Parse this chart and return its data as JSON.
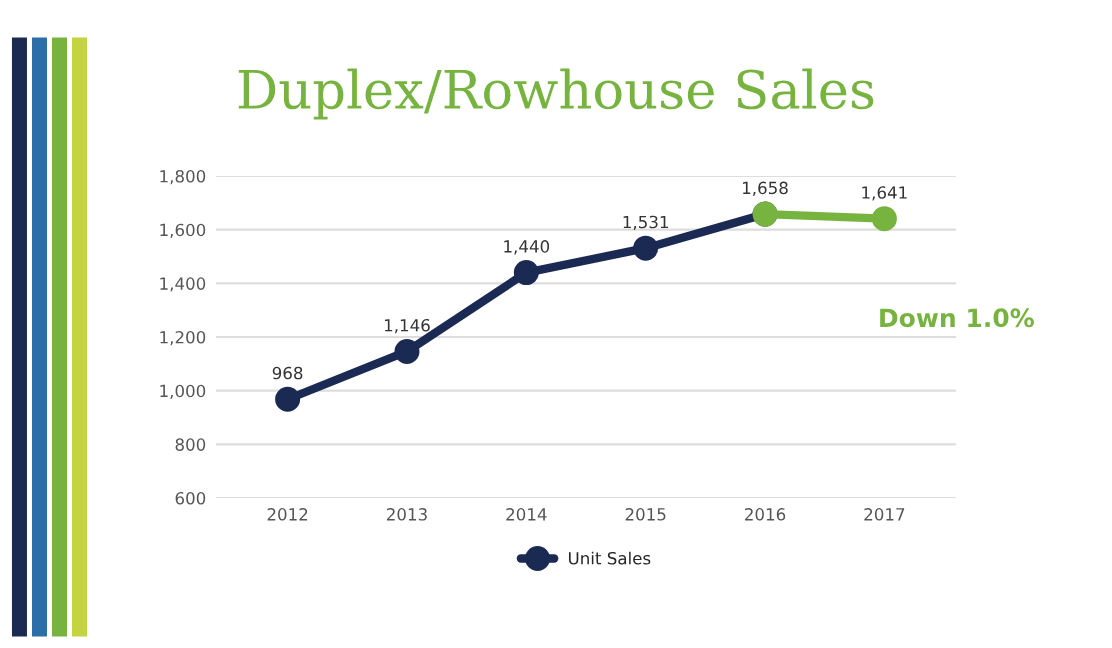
{
  "chart_data": {
    "type": "line",
    "title": "Duplex/Rowhouse Sales",
    "categories": [
      "2012",
      "2013",
      "2014",
      "2015",
      "2016",
      "2017"
    ],
    "series": [
      {
        "name": "Unit Sales",
        "color": "#1b2a52",
        "values": [
          968,
          1146,
          1440,
          1531,
          1658,
          null
        ],
        "value_labels": [
          "968",
          "1,146",
          "1,440",
          "1,531",
          "1,658",
          null
        ]
      },
      {
        "color": "#77b43f",
        "values": [
          null,
          null,
          null,
          null,
          1658,
          1641
        ],
        "value_labels": [
          null,
          null,
          null,
          null,
          null,
          "1,641"
        ]
      }
    ],
    "ylim": [
      600,
      1800
    ],
    "yticks": [
      {
        "value": 600,
        "label": "600"
      },
      {
        "value": 800,
        "label": "800"
      },
      {
        "value": 1000,
        "label": "1,000"
      },
      {
        "value": 1200,
        "label": "1,200"
      },
      {
        "value": 1400,
        "label": "1,400"
      },
      {
        "value": 1600,
        "label": "1,600"
      },
      {
        "value": 1800,
        "label": "1,800"
      }
    ],
    "grid": "y",
    "legend": "bottom",
    "marker": "circle",
    "line_style": "solid",
    "annotations": [
      "Down 1.0%"
    ]
  }
}
